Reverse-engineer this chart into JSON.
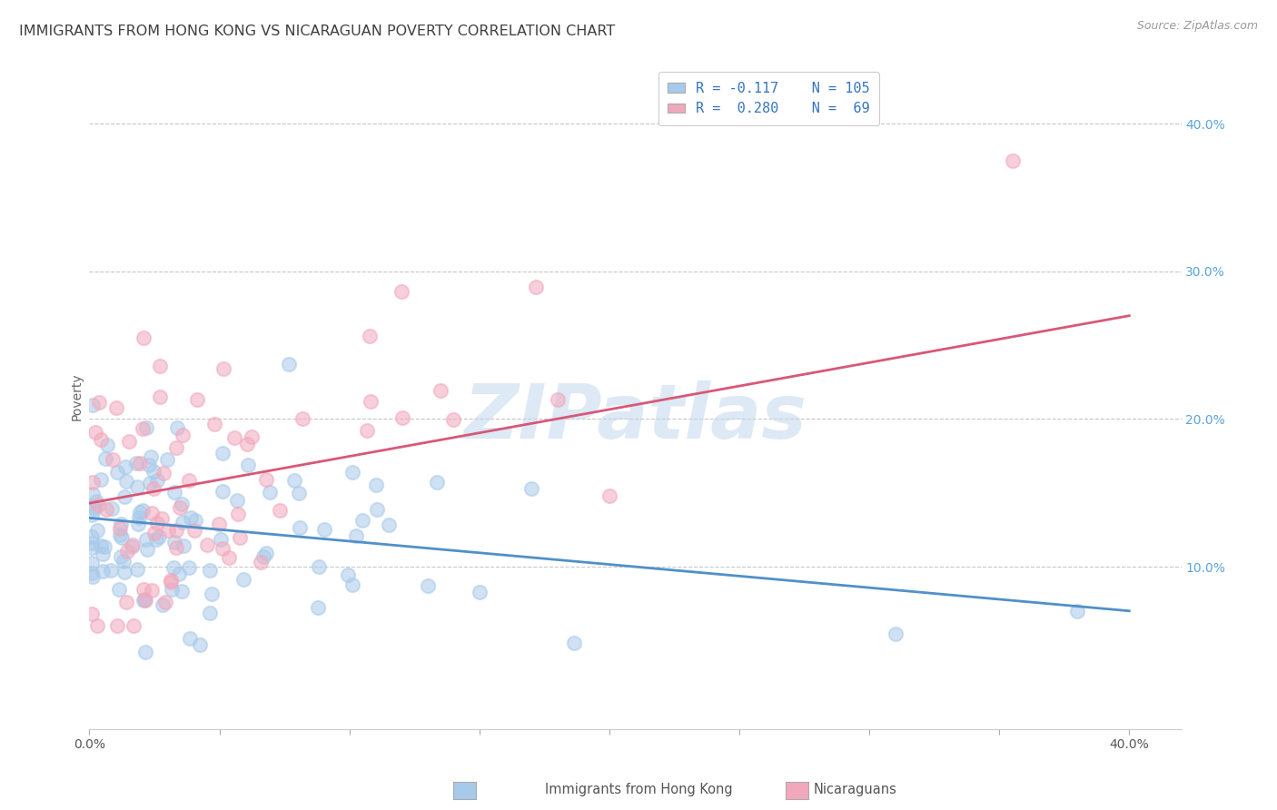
{
  "title": "IMMIGRANTS FROM HONG KONG VS NICARAGUAN POVERTY CORRELATION CHART",
  "source": "Source: ZipAtlas.com",
  "ylabel": "Poverty",
  "watermark": "ZIPatlas",
  "legend_blue_r": "R = -0.117",
  "legend_blue_n": "N = 105",
  "legend_pink_r": "R =  0.280",
  "legend_pink_n": "N =  69",
  "legend_label_blue": "Immigrants from Hong Kong",
  "legend_label_pink": "Nicaraguans",
  "xlim": [
    0.0,
    0.42
  ],
  "ylim": [
    -0.01,
    0.44
  ],
  "yticks": [
    0.1,
    0.2,
    0.3,
    0.4
  ],
  "ytick_labels": [
    "10.0%",
    "20.0%",
    "30.0%",
    "40.0%"
  ],
  "xticks": [
    0.0,
    0.05,
    0.1,
    0.15,
    0.2,
    0.25,
    0.3,
    0.35,
    0.4
  ],
  "blue_color": "#A8CAEA",
  "pink_color": "#F2A8BC",
  "blue_line_color": "#5090C8",
  "pink_line_color": "#D85878",
  "background_color": "#FFFFFF",
  "grid_color": "#C8C8C8",
  "title_color": "#404040",
  "right_tick_color": "#5BA3D9",
  "blue_line_y_start": 0.133,
  "blue_line_y_end": 0.07,
  "pink_line_y_start": 0.143,
  "pink_line_y_end": 0.27,
  "blue_seed": 12,
  "pink_seed": 7,
  "n_blue": 105,
  "n_pink": 69
}
